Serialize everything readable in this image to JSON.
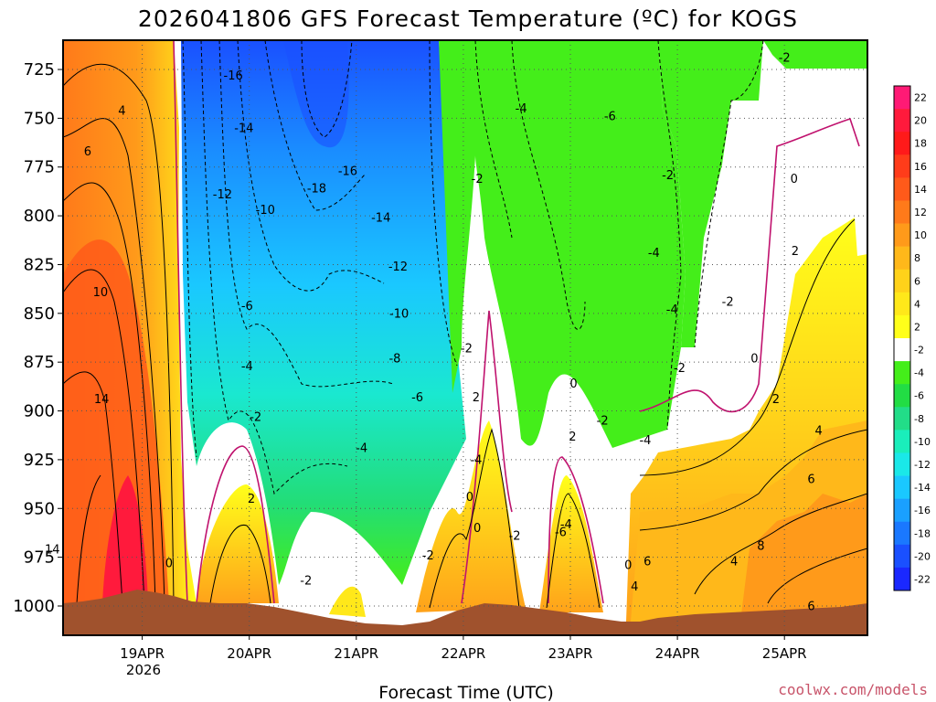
{
  "chart_data": {
    "type": "heatmap",
    "title": "2026041806 GFS Forecast Temperature (ºC) for KOGS",
    "xlabel": "Forecast Time (UTC)",
    "ylabel": "",
    "credit": "coolwx.com/models",
    "x_ticks": [
      "19APR",
      "20APR",
      "21APR",
      "22APR",
      "23APR",
      "24APR",
      "25APR"
    ],
    "x_year": "2026",
    "y_ticks": [
      "725",
      "750",
      "775",
      "800",
      "825",
      "850",
      "875",
      "900",
      "925",
      "950",
      "975",
      "1000"
    ],
    "ylim": [
      1015,
      710
    ],
    "colorbar": {
      "labels": [
        "22",
        "20",
        "18",
        "16",
        "14",
        "12",
        "10",
        "8",
        "6",
        "4",
        "2",
        "-2",
        "-4",
        "-6",
        "-8",
        "-10",
        "-12",
        "-14",
        "-16",
        "-18",
        "-20",
        "-22"
      ],
      "colors": [
        "#ff1a75",
        "#ff1a3c",
        "#ff1a1a",
        "#ff3c1a",
        "#ff5a1a",
        "#ff7a1a",
        "#ff9a1a",
        "#ffb81a",
        "#ffd21a",
        "#ffe81a",
        "#ffff1a",
        "#ffffff",
        "#44ee1a",
        "#22dd44",
        "#22dd88",
        "#1aeebb",
        "#1ae8e8",
        "#1ac8ff",
        "#1aa0ff",
        "#1a78ff",
        "#1a50ff",
        "#1a28ff"
      ]
    },
    "contour_labels": [
      {
        "v": "-16",
        "day": 1.85,
        "p": 728
      },
      {
        "v": "-14",
        "day": 1.95,
        "p": 755
      },
      {
        "v": "-12",
        "day": 1.75,
        "p": 789
      },
      {
        "v": "-10",
        "day": 2.15,
        "p": 797
      },
      {
        "v": "-18",
        "day": 2.63,
        "p": 786
      },
      {
        "v": "-16",
        "day": 2.92,
        "p": 777
      },
      {
        "v": "-14",
        "day": 3.23,
        "p": 801
      },
      {
        "v": "-12",
        "day": 3.39,
        "p": 826
      },
      {
        "v": "-10",
        "day": 3.4,
        "p": 850
      },
      {
        "v": "-8",
        "day": 3.36,
        "p": 873
      },
      {
        "v": "-6",
        "day": 3.57,
        "p": 893
      },
      {
        "v": "-4",
        "day": 3.05,
        "p": 919
      },
      {
        "v": "-6",
        "day": 1.98,
        "p": 846
      },
      {
        "v": "-4",
        "day": 1.98,
        "p": 877
      },
      {
        "v": "-2",
        "day": 2.06,
        "p": 903
      },
      {
        "v": "2",
        "day": 2.02,
        "p": 945
      },
      {
        "v": "-2",
        "day": 2.53,
        "p": 987
      },
      {
        "v": "-2",
        "day": 3.67,
        "p": 974
      },
      {
        "v": "-2",
        "day": 4.13,
        "p": 781
      },
      {
        "v": "-4",
        "day": 4.54,
        "p": 745
      },
      {
        "v": "-6",
        "day": 5.37,
        "p": 749
      },
      {
        "v": "-2",
        "day": 5.91,
        "p": 779
      },
      {
        "v": "-4",
        "day": 5.78,
        "p": 819
      },
      {
        "v": "-4",
        "day": 5.95,
        "p": 848
      },
      {
        "v": "-2",
        "day": 6.47,
        "p": 844
      },
      {
        "v": "-2",
        "day": 6.02,
        "p": 878
      },
      {
        "v": "-2",
        "day": 7.0,
        "p": 719
      },
      {
        "v": "0",
        "day": 7.09,
        "p": 781
      },
      {
        "v": "2",
        "day": 7.1,
        "p": 818
      },
      {
        "v": "0",
        "day": 6.72,
        "p": 873
      },
      {
        "v": "2",
        "day": 6.92,
        "p": 894
      },
      {
        "v": "2",
        "day": 5.02,
        "p": 913
      },
      {
        "v": "0",
        "day": 5.03,
        "p": 886
      },
      {
        "v": "-2",
        "day": 5.3,
        "p": 905
      },
      {
        "v": "-4",
        "day": 5.7,
        "p": 915
      },
      {
        "v": "-2",
        "day": 4.03,
        "p": 868
      },
      {
        "v": "-4",
        "day": 4.12,
        "p": 925
      },
      {
        "v": "2",
        "day": 4.12,
        "p": 893
      },
      {
        "v": "0",
        "day": 4.13,
        "p": 960
      },
      {
        "v": "-2",
        "day": 4.48,
        "p": 964
      },
      {
        "v": "0",
        "day": 4.06,
        "p": 944
      },
      {
        "v": "-4",
        "day": 4.96,
        "p": 958
      },
      {
        "v": "-6",
        "day": 4.91,
        "p": 962
      },
      {
        "v": "4",
        "day": 0.81,
        "p": 746
      },
      {
        "v": "6",
        "day": 0.49,
        "p": 767
      },
      {
        "v": "10",
        "day": 0.61,
        "p": 839
      },
      {
        "v": "14",
        "day": 0.62,
        "p": 894
      },
      {
        "v": "14",
        "day": 0.16,
        "p": 971
      },
      {
        "v": "0",
        "day": 1.25,
        "p": 978
      },
      {
        "v": "0",
        "day": 5.54,
        "p": 979
      },
      {
        "v": "4",
        "day": 5.6,
        "p": 990
      },
      {
        "v": "6",
        "day": 5.72,
        "p": 977
      },
      {
        "v": "4",
        "day": 6.53,
        "p": 977
      },
      {
        "v": "8",
        "day": 6.78,
        "p": 969
      },
      {
        "v": "6",
        "day": 7.25,
        "p": 935
      },
      {
        "v": "4",
        "day": 7.32,
        "p": 910
      },
      {
        "v": "6",
        "day": 7.25,
        "p": 1000
      }
    ]
  }
}
